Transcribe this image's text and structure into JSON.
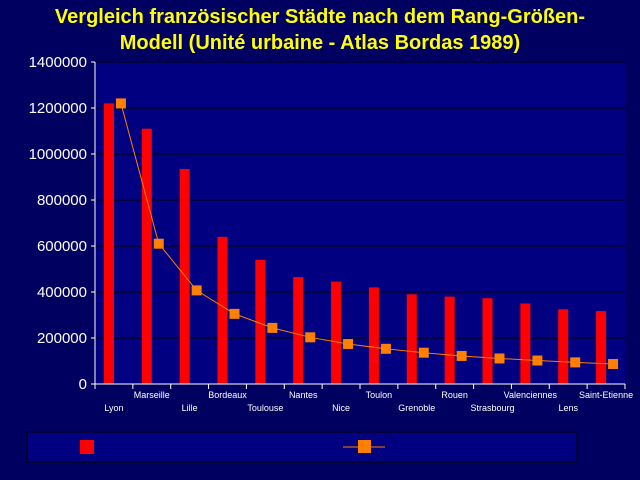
{
  "chart_data": {
    "type": "bar",
    "title_line1": "Vergleich französischer Städte nach dem Rang-Größen-",
    "title_line2": "Modell (Unité urbaine - Atlas Bordas 1989)",
    "categories": [
      "Lyon",
      "Marseille",
      "Lille",
      "Bordeaux",
      "Toulouse",
      "Nantes",
      "Nice",
      "Toulon",
      "Grenoble",
      "Rouen",
      "Strasbourg",
      "Valenciennes",
      "Lens",
      "Saint-Etienne"
    ],
    "yticks": [
      "0",
      "200000",
      "400000",
      "600000",
      "800000",
      "1000000",
      "1200000",
      "1400000"
    ],
    "ylim": [
      0,
      1400000
    ],
    "series": [
      {
        "type": "bar",
        "color": "#ff0000",
        "values": [
          1220000,
          1110000,
          935000,
          640000,
          540000,
          465000,
          445000,
          420000,
          390000,
          380000,
          373000,
          350000,
          325000,
          317000
        ]
      },
      {
        "type": "line",
        "color": "#ff8000",
        "values": [
          1220000,
          610000,
          407000,
          305000,
          244000,
          203000,
          174000,
          153000,
          136000,
          122000,
          111000,
          102000,
          94000,
          87000
        ]
      }
    ],
    "legend_position": "bottom"
  },
  "colors": {
    "background": "#000060",
    "plot_background": "#000080",
    "title": "#ffff00",
    "grid": "#000000"
  }
}
